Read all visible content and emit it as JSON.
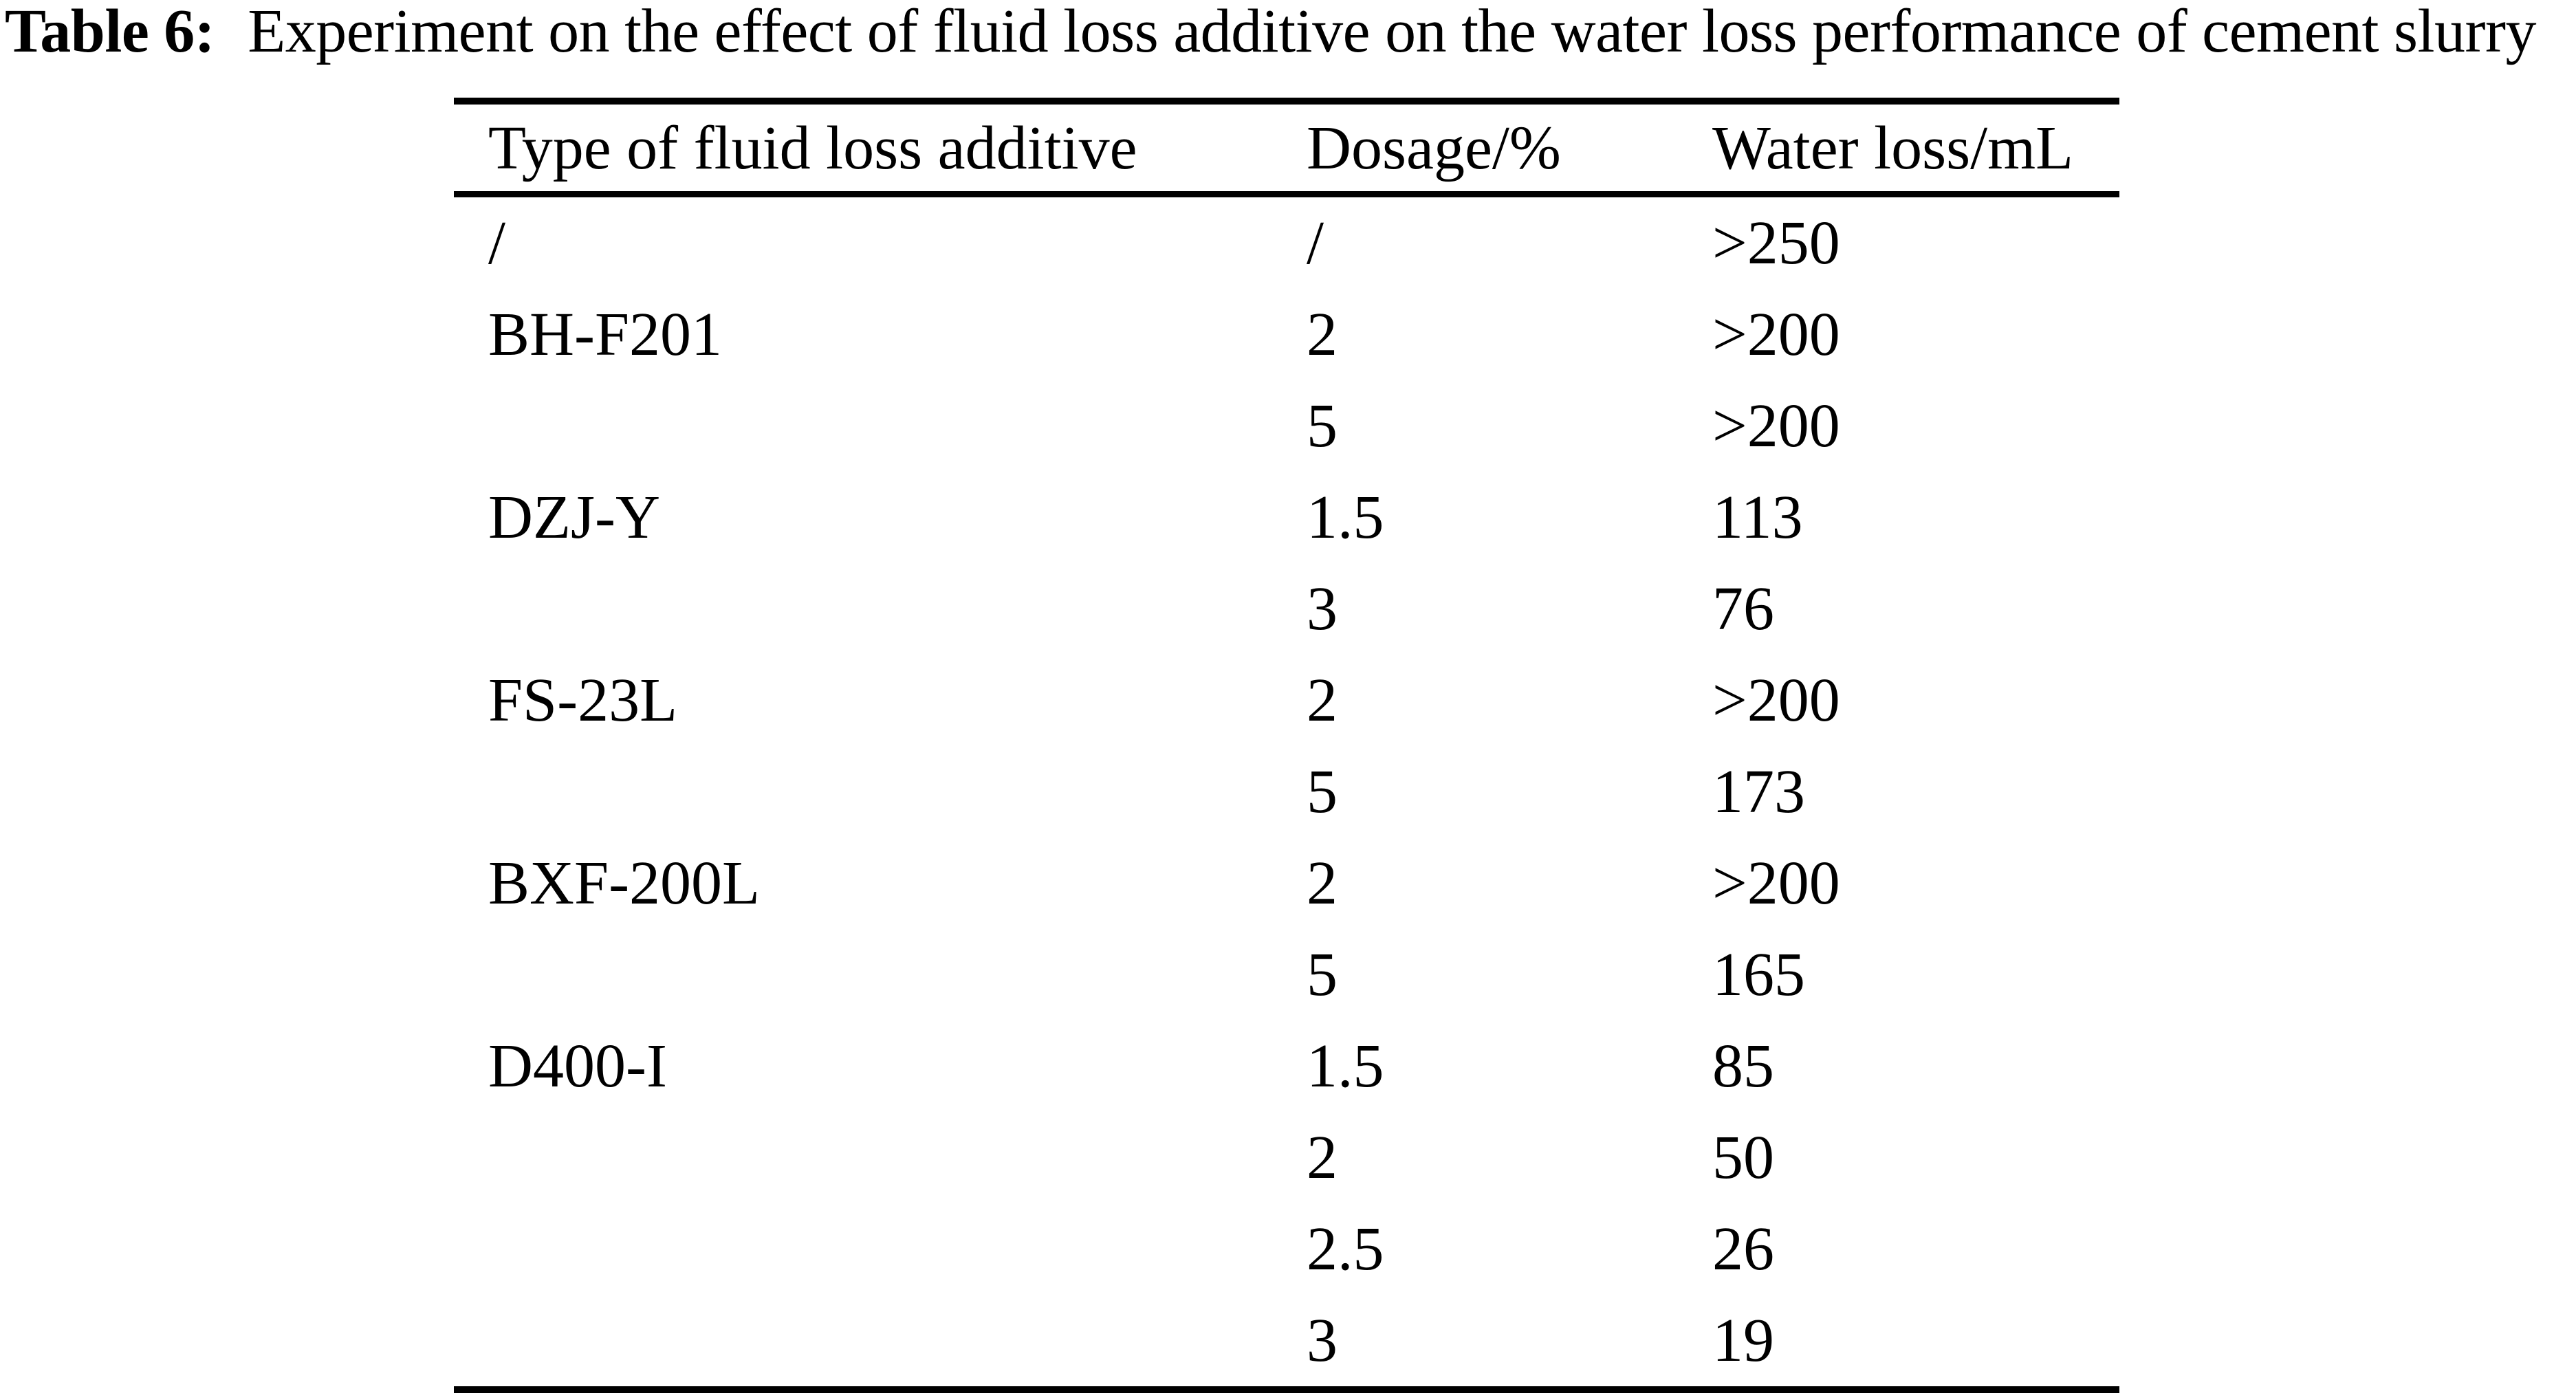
{
  "caption": {
    "label": "Table 6:",
    "text": "Experiment on the effect of fluid loss additive on the water loss performance of cement slurry"
  },
  "chart_data": {
    "type": "table",
    "title": "Table 6: Experiment on the effect of fluid loss additive on the water loss performance of cement slurry",
    "columns": [
      "Type of fluid loss additive",
      "Dosage/%",
      "Water loss/mL"
    ],
    "rows": [
      [
        "/",
        "/",
        ">250"
      ],
      [
        "BH-F201",
        "2",
        ">200"
      ],
      [
        "",
        "5",
        ">200"
      ],
      [
        "DZJ-Y",
        "1.5",
        "113"
      ],
      [
        "",
        "3",
        "76"
      ],
      [
        "FS-23L",
        "2",
        ">200"
      ],
      [
        "",
        "5",
        "173"
      ],
      [
        "BXF-200L",
        "2",
        ">200"
      ],
      [
        "",
        "5",
        "165"
      ],
      [
        "D400-I",
        "1.5",
        "85"
      ],
      [
        "",
        "2",
        "50"
      ],
      [
        "",
        "2.5",
        "26"
      ],
      [
        "",
        "3",
        "19"
      ]
    ]
  },
  "colors": {
    "background": "#ffffff",
    "text": "#000000",
    "rule": "#000000"
  }
}
